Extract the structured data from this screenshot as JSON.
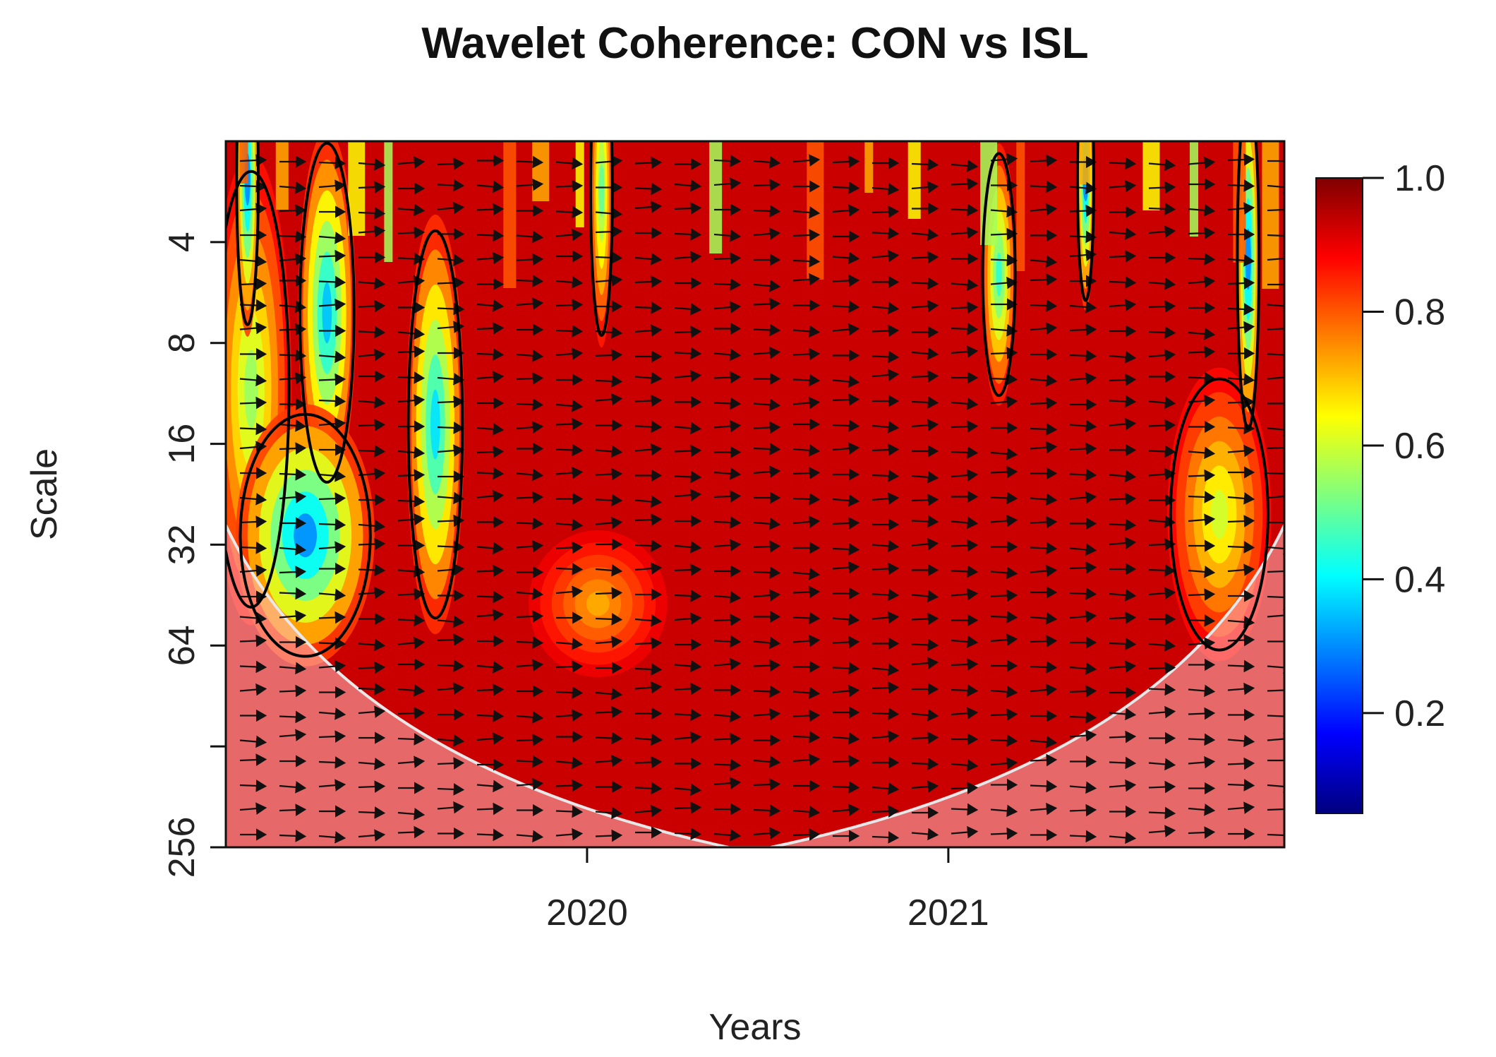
{
  "chart_data": {
    "type": "heatmap",
    "title": "Wavelet Coherence: CON vs ISL",
    "xlabel": "Years",
    "ylabel": "Scale",
    "x_range": [
      2019.0,
      2021.93
    ],
    "x_ticks": [
      2020,
      2021
    ],
    "x_tick_labels": [
      "2020",
      "2021"
    ],
    "y_scale": "log2",
    "y_range": [
      2,
      256
    ],
    "y_ticks": [
      4,
      8,
      16,
      32,
      64,
      128,
      256
    ],
    "y_tick_labels": [
      "4",
      "8",
      "16",
      "32",
      "64",
      "",
      "256"
    ],
    "colorbar": {
      "range": [
        0.05,
        1.0
      ],
      "ticks": [
        0.2,
        0.4,
        0.6,
        0.8,
        1.0
      ],
      "tick_labels": [
        "0.2",
        "0.4",
        "0.6",
        "0.8",
        "1.0"
      ],
      "colors": [
        "#00007f",
        "#0000ff",
        "#007fff",
        "#00ffff",
        "#7fff7f",
        "#ffff00",
        "#ff7f00",
        "#ff0000",
        "#7f0000"
      ]
    },
    "cone_of_influence": {
      "apex_year": 2020.45,
      "apex_scale": 256,
      "left_edge_scale": 28,
      "right_edge_scale": 28
    },
    "background_coherence": 0.93,
    "low_coherence_regions": [
      {
        "x": 2019.07,
        "scale": 11,
        "sx": 0.07,
        "sy": 0.45,
        "value": 0.55
      },
      {
        "x": 2019.28,
        "scale": 6.5,
        "sx": 0.05,
        "sy": 0.35,
        "value": 0.35
      },
      {
        "x": 2019.58,
        "scale": 14,
        "sx": 0.05,
        "sy": 0.4,
        "value": 0.38
      },
      {
        "x": 2019.22,
        "scale": 30,
        "sx": 0.12,
        "sy": 0.25,
        "value": 0.3
      },
      {
        "x": 2021.75,
        "scale": 26,
        "sx": 0.09,
        "sy": 0.28,
        "value": 0.6
      },
      {
        "x": 2021.14,
        "scale": 5,
        "sx": 0.03,
        "sy": 0.25,
        "value": 0.45
      },
      {
        "x": 2021.83,
        "scale": 4.5,
        "sx": 0.02,
        "sy": 0.35,
        "value": 0.3
      },
      {
        "x": 2020.04,
        "scale": 2.8,
        "sx": 0.02,
        "sy": 0.3,
        "value": 0.5
      },
      {
        "x": 2019.06,
        "scale": 2.6,
        "sx": 0.02,
        "sy": 0.3,
        "value": 0.3
      },
      {
        "x": 2021.38,
        "scale": 2.6,
        "sx": 0.015,
        "sy": 0.25,
        "value": 0.3
      },
      {
        "x": 2020.03,
        "scale": 48,
        "sx": 0.12,
        "sy": 0.14,
        "value": 0.72
      }
    ],
    "arrow_direction": "right (in-phase)"
  }
}
